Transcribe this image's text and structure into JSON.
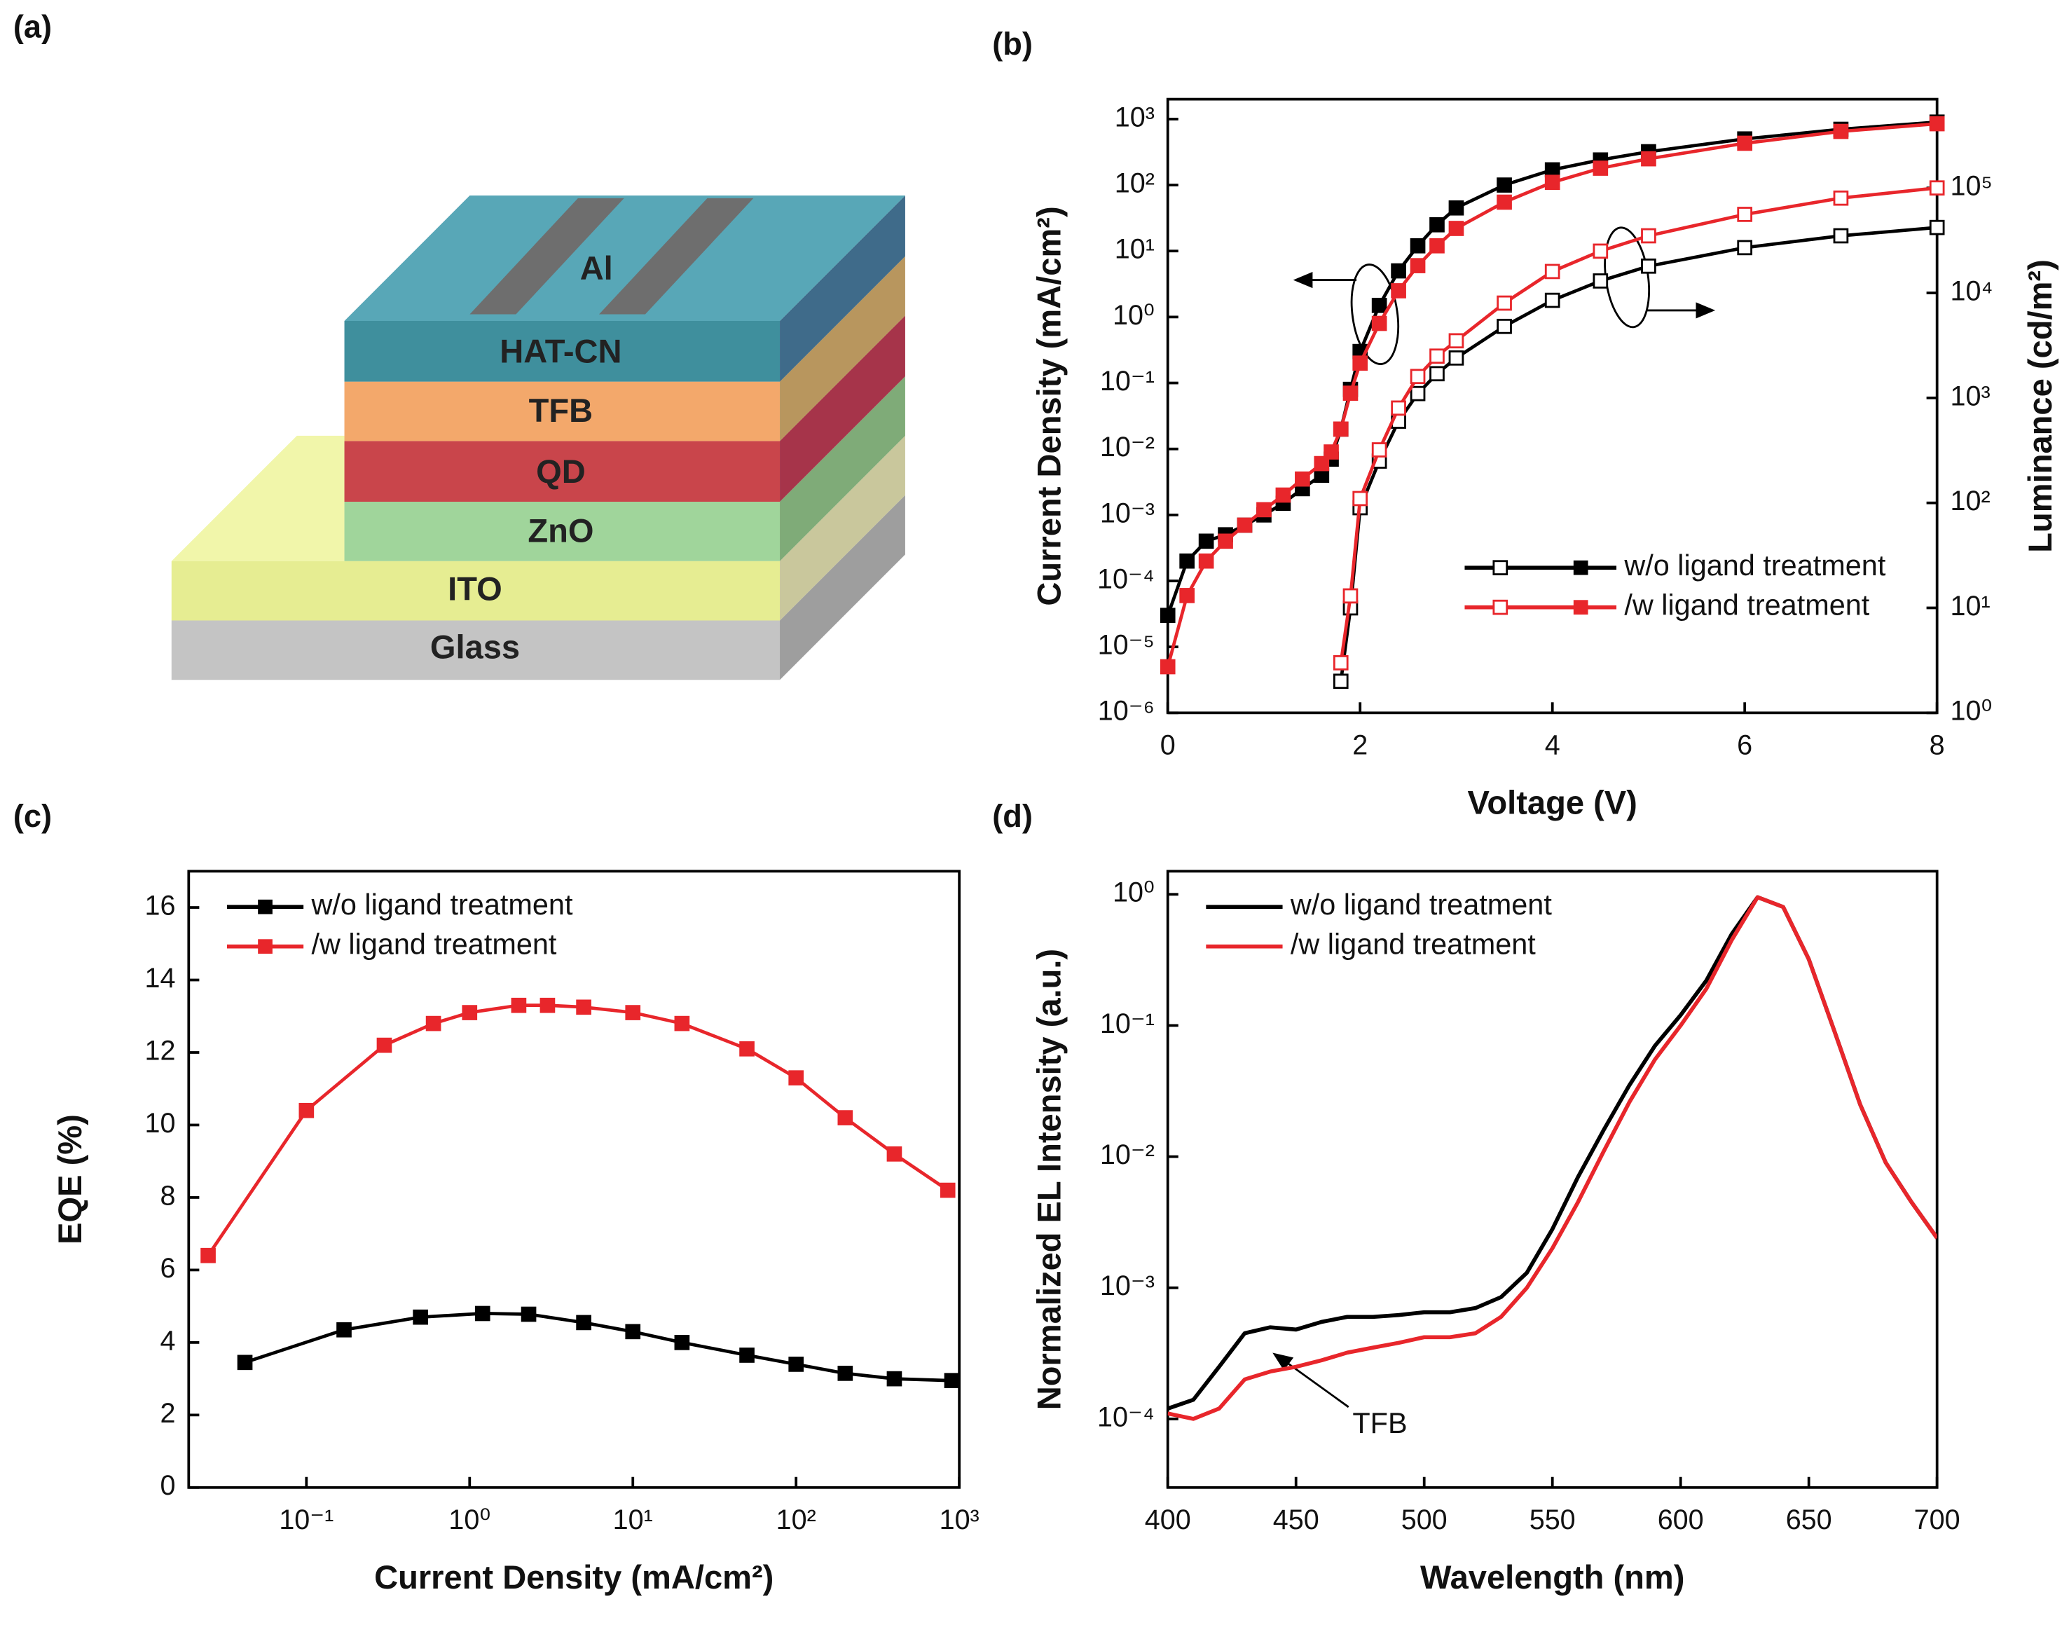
{
  "device": {
    "panel_label": "(a)",
    "layers": [
      "Al",
      "HAT-CN",
      "TFB",
      "QD",
      "ZnO",
      "ITO",
      "Glass"
    ]
  },
  "chart_data": [
    {
      "type": "line",
      "panel_label": "(b)",
      "x_label": "Voltage (V)",
      "y_label": "Current Density (mA/cm²)",
      "y2_label": "Luminance (cd/m²)",
      "x": [
        0,
        0.2,
        0.4,
        0.6,
        0.8,
        1.0,
        1.2,
        1.4,
        1.6,
        1.7,
        1.8,
        1.9,
        2.0,
        2.2,
        2.4,
        2.6,
        2.8,
        3.0,
        3.5,
        4,
        4.5,
        5,
        6,
        7,
        8
      ],
      "xlim": [
        0,
        8
      ],
      "xticks": [
        0,
        2,
        4,
        6,
        8
      ],
      "ylim": [
        1e-06,
        2000
      ],
      "y_log": true,
      "yticks": [
        {
          "value": 1e-06,
          "label": "10⁻⁶"
        },
        {
          "value": 1e-05,
          "label": "10⁻⁵"
        },
        {
          "value": 0.0001,
          "label": "10⁻⁴"
        },
        {
          "value": 0.001,
          "label": "10⁻³"
        },
        {
          "value": 0.01,
          "label": "10⁻²"
        },
        {
          "value": 0.1,
          "label": "10⁻¹"
        },
        {
          "value": 1,
          "label": "10⁰"
        },
        {
          "value": 10,
          "label": "10¹"
        },
        {
          "value": 100,
          "label": "10²"
        },
        {
          "value": 1000,
          "label": "10³"
        }
      ],
      "y2lim": [
        1,
        700000
      ],
      "y2_log": true,
      "y2ticks": [
        {
          "value": 1,
          "label": "10⁰"
        },
        {
          "value": 10,
          "label": "10¹"
        },
        {
          "value": 100,
          "label": "10²"
        },
        {
          "value": 1000,
          "label": "10³"
        },
        {
          "value": 10000,
          "label": "10⁴"
        },
        {
          "value": 100000,
          "label": "10⁵"
        }
      ],
      "markers": true,
      "legend": "lower right",
      "series": [
        {
          "name": "w/o ligand treatment",
          "color": "#000000",
          "values": [
            3e-05,
            0.0002,
            0.0004,
            0.0005,
            0.0007,
            0.001,
            0.0015,
            0.0025,
            0.004,
            0.007,
            0.02,
            0.08,
            0.3,
            1.5,
            5,
            12,
            25,
            45,
            100,
            170,
            240,
            320,
            500,
            700,
            900
          ],
          "values_y2": [
            null,
            null,
            null,
            null,
            null,
            null,
            null,
            null,
            null,
            null,
            2,
            10,
            90,
            250,
            600,
            1100,
            1700,
            2400,
            4800,
            8500,
            13000,
            18000,
            27000,
            35000,
            42000
          ]
        },
        {
          "name": "/w ligand treatment",
          "color": "#e8262b",
          "values": [
            5e-06,
            6e-05,
            0.0002,
            0.0004,
            0.0007,
            0.0012,
            0.002,
            0.0035,
            0.006,
            0.009,
            0.02,
            0.07,
            0.2,
            0.8,
            2.5,
            6,
            12,
            22,
            55,
            110,
            180,
            250,
            430,
            650,
            850
          ],
          "values_y2": [
            null,
            null,
            null,
            null,
            null,
            null,
            null,
            null,
            null,
            null,
            3,
            13,
            110,
            320,
            800,
            1600,
            2500,
            3500,
            8000,
            16000,
            25000,
            35000,
            56000,
            80000,
            100000
          ]
        }
      ]
    },
    {
      "type": "line",
      "panel_label": "(c)",
      "x_label": "Current Density (mA/cm²)",
      "y_label": "EQE (%)",
      "xlim": [
        0.019,
        1000
      ],
      "x_log": true,
      "xticks": [
        {
          "value": 0.1,
          "label": "10⁻¹"
        },
        {
          "value": 1,
          "label": "10⁰"
        },
        {
          "value": 10,
          "label": "10¹"
        },
        {
          "value": 100,
          "label": "10²"
        },
        {
          "value": 1000,
          "label": "10³"
        }
      ],
      "ylim": [
        0,
        17
      ],
      "yticks": [
        0,
        2,
        4,
        6,
        8,
        10,
        12,
        14,
        16
      ],
      "markers": true,
      "legend": "upper left",
      "series": [
        {
          "name": "w/o ligand treatment",
          "color": "#000000",
          "x": [
            0.042,
            0.17,
            0.5,
            1.2,
            2.3,
            5,
            10,
            20,
            50,
            100,
            200,
            400,
            900
          ],
          "values": [
            3.45,
            4.35,
            4.7,
            4.8,
            4.78,
            4.55,
            4.3,
            4.0,
            3.65,
            3.4,
            3.15,
            3.0,
            2.95
          ]
        },
        {
          "name": "/w ligand treatment",
          "color": "#e8262b",
          "x": [
            0.025,
            0.1,
            0.3,
            0.6,
            1,
            2,
            3,
            5,
            10,
            20,
            50,
            100,
            200,
            400,
            850
          ],
          "values": [
            6.4,
            10.4,
            12.2,
            12.8,
            13.1,
            13.3,
            13.3,
            13.25,
            13.1,
            12.8,
            12.1,
            11.3,
            10.2,
            9.2,
            8.2
          ]
        }
      ]
    },
    {
      "type": "line",
      "panel_label": "(d)",
      "x_label": "Wavelength (nm)",
      "y_label": "Normalized EL Intensity (a.u.)",
      "x": [
        400,
        410,
        420,
        430,
        440,
        450,
        460,
        470,
        480,
        490,
        500,
        510,
        520,
        530,
        540,
        550,
        560,
        570,
        580,
        590,
        600,
        610,
        620,
        630,
        640,
        650,
        660,
        670,
        680,
        690,
        700
      ],
      "xlim": [
        400,
        700
      ],
      "xticks": [
        400,
        450,
        500,
        550,
        600,
        650,
        700
      ],
      "ylim": [
        3e-05,
        1.5
      ],
      "y_log": true,
      "yticks": [
        {
          "value": 0.0001,
          "label": "10⁻⁴"
        },
        {
          "value": 0.001,
          "label": "10⁻³"
        },
        {
          "value": 0.01,
          "label": "10⁻²"
        },
        {
          "value": 0.1,
          "label": "10⁻¹"
        },
        {
          "value": 1,
          "label": "10⁰"
        }
      ],
      "markers": false,
      "legend": "upper left",
      "annotation": "TFB",
      "series": [
        {
          "name": "w/o ligand treatment",
          "color": "#000000",
          "values": [
            0.00012,
            0.00014,
            0.00025,
            0.00045,
            0.0005,
            0.00048,
            0.00055,
            0.0006,
            0.0006,
            0.00062,
            0.00065,
            0.00065,
            0.0007,
            0.00085,
            0.0013,
            0.0028,
            0.007,
            0.016,
            0.035,
            0.07,
            0.12,
            0.22,
            0.5,
            0.95,
            0.8,
            0.32,
            0.09,
            0.025,
            0.009,
            0.0045,
            0.0024
          ]
        },
        {
          "name": "/w ligand treatment",
          "color": "#e8262b",
          "values": [
            0.00011,
            0.0001,
            0.00012,
            0.0002,
            0.00023,
            0.00025,
            0.00028,
            0.00032,
            0.00035,
            0.00038,
            0.00042,
            0.00042,
            0.00045,
            0.0006,
            0.001,
            0.002,
            0.0045,
            0.011,
            0.026,
            0.055,
            0.1,
            0.19,
            0.45,
            0.95,
            0.8,
            0.32,
            0.09,
            0.025,
            0.009,
            0.0045,
            0.0024
          ]
        }
      ]
    }
  ]
}
